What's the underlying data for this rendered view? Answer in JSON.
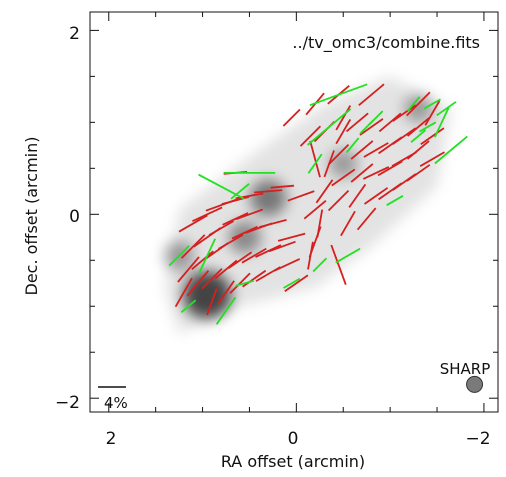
{
  "chart_data": {
    "type": "scatter",
    "title": "../tv_omc3/combine.fits",
    "xlabel": "RA offset (arcmin)",
    "ylabel": "Dec. offset (arcmin)",
    "xlim": [
      2.2,
      -2.15
    ],
    "ylim": [
      -2.15,
      2.2
    ],
    "x_ticks": [
      2,
      0,
      -2
    ],
    "y_ticks": [
      2,
      0,
      -2
    ],
    "x_tick_labels": [
      "2",
      "0",
      "−2"
    ],
    "y_tick_labels": [
      "2",
      "0",
      "−2"
    ],
    "scale_bar_label": "4%",
    "beam_label": "SHARP",
    "beam_position": [
      -1.9,
      -1.85
    ],
    "colors": {
      "series_1": "#d42020",
      "series_2": "#22e022",
      "intensity": "#000000"
    },
    "intensity_peaks": [
      {
        "x": 0.95,
        "y": -0.88,
        "value": 1.0
      },
      {
        "x": 0.3,
        "y": 0.18,
        "value": 0.6
      },
      {
        "x": 0.55,
        "y": -0.25,
        "value": 0.45
      },
      {
        "x": 1.25,
        "y": -0.45,
        "value": 0.35
      },
      {
        "x": -0.5,
        "y": 0.55,
        "value": 0.3
      },
      {
        "x": -1.3,
        "y": 1.15,
        "value": 0.3
      }
    ],
    "series": [
      {
        "segments": [
          {
            "x": 1.1,
            "y": -0.1,
            "angle": 30,
            "length": 0.35
          },
          {
            "x": 0.95,
            "y": 0.0,
            "angle": 25,
            "length": 0.35
          },
          {
            "x": 0.8,
            "y": 0.1,
            "angle": 20,
            "length": 0.35
          },
          {
            "x": 0.65,
            "y": 0.15,
            "angle": 15,
            "length": 0.3
          },
          {
            "x": 0.5,
            "y": 0.2,
            "angle": 10,
            "length": 0.3
          },
          {
            "x": 0.3,
            "y": 0.25,
            "angle": 5,
            "length": 0.3
          },
          {
            "x": 1.1,
            "y": -0.35,
            "angle": 45,
            "length": 0.35
          },
          {
            "x": 0.95,
            "y": -0.25,
            "angle": 35,
            "length": 0.35
          },
          {
            "x": 0.8,
            "y": -0.15,
            "angle": 30,
            "length": 0.3
          },
          {
            "x": 0.65,
            "y": -0.05,
            "angle": 25,
            "length": 0.3
          },
          {
            "x": 0.5,
            "y": 0.0,
            "angle": 20,
            "length": 0.3
          },
          {
            "x": 1.15,
            "y": -0.6,
            "angle": 50,
            "length": 0.35
          },
          {
            "x": 1.0,
            "y": -0.5,
            "angle": 40,
            "length": 0.3
          },
          {
            "x": 0.85,
            "y": -0.4,
            "angle": 35,
            "length": 0.3
          },
          {
            "x": 0.7,
            "y": -0.3,
            "angle": 30,
            "length": 0.3
          },
          {
            "x": 0.55,
            "y": -0.2,
            "angle": 25,
            "length": 0.3
          },
          {
            "x": 0.4,
            "y": -0.15,
            "angle": 20,
            "length": 0.3
          },
          {
            "x": 0.25,
            "y": -0.1,
            "angle": 15,
            "length": 0.3
          },
          {
            "x": 1.2,
            "y": -0.85,
            "angle": 60,
            "length": 0.35
          },
          {
            "x": 1.05,
            "y": -0.75,
            "angle": 50,
            "length": 0.35
          },
          {
            "x": 0.9,
            "y": -0.7,
            "angle": 45,
            "length": 0.3
          },
          {
            "x": 0.75,
            "y": -0.6,
            "angle": 40,
            "length": 0.3
          },
          {
            "x": 0.6,
            "y": -0.5,
            "angle": 35,
            "length": 0.3
          },
          {
            "x": 0.45,
            "y": -0.45,
            "angle": 30,
            "length": 0.3
          },
          {
            "x": 0.3,
            "y": -0.4,
            "angle": 25,
            "length": 0.3
          },
          {
            "x": 0.15,
            "y": -0.35,
            "angle": 20,
            "length": 0.3
          },
          {
            "x": 0.9,
            "y": -0.95,
            "angle": 70,
            "length": 0.3
          },
          {
            "x": 0.75,
            "y": -0.85,
            "angle": 55,
            "length": 0.3
          },
          {
            "x": 0.6,
            "y": -0.75,
            "angle": 45,
            "length": 0.3
          },
          {
            "x": 0.45,
            "y": -0.7,
            "angle": 35,
            "length": 0.3
          },
          {
            "x": 0.3,
            "y": -0.65,
            "angle": 30,
            "length": 0.3
          },
          {
            "x": 0.1,
            "y": -0.55,
            "angle": 25,
            "length": 0.3
          },
          {
            "x": 0.05,
            "y": -0.25,
            "angle": 15,
            "length": 0.3
          },
          {
            "x": 0.0,
            "y": -0.75,
            "angle": 35,
            "length": 0.3
          },
          {
            "x": 0.15,
            "y": 0.3,
            "angle": 5,
            "length": 0.25
          },
          {
            "x": -0.05,
            "y": 0.2,
            "angle": 20,
            "length": 0.3
          },
          {
            "x": -0.2,
            "y": 0.05,
            "angle": 40,
            "length": 0.3
          },
          {
            "x": -0.3,
            "y": 0.25,
            "angle": 55,
            "length": 0.3
          },
          {
            "x": -0.35,
            "y": 0.55,
            "angle": 70,
            "length": 0.3
          },
          {
            "x": -0.2,
            "y": 0.6,
            "angle": 105,
            "length": 0.4
          },
          {
            "x": -0.5,
            "y": 0.9,
            "angle": 60,
            "length": 0.3
          },
          {
            "x": -0.45,
            "y": 0.65,
            "angle": 45,
            "length": 0.3
          },
          {
            "x": -0.5,
            "y": 0.4,
            "angle": 35,
            "length": 0.3
          },
          {
            "x": -0.45,
            "y": 0.15,
            "angle": 45,
            "length": 0.3
          },
          {
            "x": -0.55,
            "y": -0.1,
            "angle": 60,
            "length": 0.3
          },
          {
            "x": -0.25,
            "y": -0.1,
            "angle": 80,
            "length": 0.3
          },
          {
            "x": -0.2,
            "y": -0.3,
            "angle": 70,
            "length": 0.35
          },
          {
            "x": -0.15,
            "y": -0.45,
            "angle": 80,
            "length": 0.3
          },
          {
            "x": -0.45,
            "y": -0.55,
            "angle": 110,
            "length": 0.45
          },
          {
            "x": -0.65,
            "y": 0.2,
            "angle": 55,
            "length": 0.3
          },
          {
            "x": -0.7,
            "y": 0.45,
            "angle": 40,
            "length": 0.3
          },
          {
            "x": -0.7,
            "y": 0.7,
            "angle": 40,
            "length": 0.3
          },
          {
            "x": -0.65,
            "y": 1.0,
            "angle": 40,
            "length": 0.3
          },
          {
            "x": -0.8,
            "y": 0.95,
            "angle": 35,
            "length": 0.3
          },
          {
            "x": -0.85,
            "y": 0.7,
            "angle": 30,
            "length": 0.3
          },
          {
            "x": -0.85,
            "y": 0.45,
            "angle": 25,
            "length": 0.3
          },
          {
            "x": -0.85,
            "y": 0.2,
            "angle": 35,
            "length": 0.3
          },
          {
            "x": -0.75,
            "y": -0.05,
            "angle": 50,
            "length": 0.3
          },
          {
            "x": -1.0,
            "y": 0.25,
            "angle": 35,
            "length": 0.3
          },
          {
            "x": -1.0,
            "y": 0.5,
            "angle": 30,
            "length": 0.3
          },
          {
            "x": -1.0,
            "y": 0.75,
            "angle": 35,
            "length": 0.3
          },
          {
            "x": -1.0,
            "y": 1.0,
            "angle": 40,
            "length": 0.3
          },
          {
            "x": -1.15,
            "y": 1.1,
            "angle": 35,
            "length": 0.3
          },
          {
            "x": -1.15,
            "y": 0.85,
            "angle": 35,
            "length": 0.3
          },
          {
            "x": -1.15,
            "y": 0.6,
            "angle": 30,
            "length": 0.3
          },
          {
            "x": -1.15,
            "y": 0.35,
            "angle": 35,
            "length": 0.3
          },
          {
            "x": -1.3,
            "y": 0.7,
            "angle": 40,
            "length": 0.3
          },
          {
            "x": -1.3,
            "y": 0.95,
            "angle": 40,
            "length": 0.3
          },
          {
            "x": -1.3,
            "y": 1.2,
            "angle": 45,
            "length": 0.35
          },
          {
            "x": -1.45,
            "y": 1.1,
            "angle": 60,
            "length": 0.3
          },
          {
            "x": -1.45,
            "y": 0.85,
            "angle": 35,
            "length": 0.3
          },
          {
            "x": -1.45,
            "y": 0.6,
            "angle": 30,
            "length": 0.3
          },
          {
            "x": -1.3,
            "y": 0.45,
            "angle": 35,
            "length": 0.3
          },
          {
            "x": -0.5,
            "y": 1.05,
            "angle": 60,
            "length": 0.3
          },
          {
            "x": -0.3,
            "y": 0.9,
            "angle": 45,
            "length": 0.3
          },
          {
            "x": -0.15,
            "y": 0.85,
            "angle": 45,
            "length": 0.3
          },
          {
            "x": -0.2,
            "y": 1.2,
            "angle": 50,
            "length": 0.3
          },
          {
            "x": -0.45,
            "y": 1.3,
            "angle": 40,
            "length": 0.3
          },
          {
            "x": -0.8,
            "y": 1.3,
            "angle": 40,
            "length": 0.35
          },
          {
            "x": 0.05,
            "y": 1.05,
            "angle": 45,
            "length": 0.25
          },
          {
            "x": 0.65,
            "y": 0.45,
            "angle": 5,
            "length": 0.25
          }
        ]
      },
      {
        "segments": [
          {
            "x": 1.25,
            "y": -0.45,
            "angle": 45,
            "length": 0.3
          },
          {
            "x": 0.5,
            "y": 0.45,
            "angle": 0,
            "length": 0.55
          },
          {
            "x": 0.8,
            "y": 0.3,
            "angle": -28,
            "length": 0.55
          },
          {
            "x": 0.95,
            "y": -0.45,
            "angle": 65,
            "length": 0.4
          },
          {
            "x": 1.15,
            "y": -1.0,
            "angle": 40,
            "length": 0.2
          },
          {
            "x": 0.75,
            "y": -1.05,
            "angle": 55,
            "length": 0.35
          },
          {
            "x": 0.6,
            "y": 0.25,
            "angle": 40,
            "length": 0.25
          },
          {
            "x": 0.55,
            "y": -0.75,
            "angle": 15,
            "length": 0.2
          },
          {
            "x": 0.05,
            "y": -0.75,
            "angle": 30,
            "length": 0.2
          },
          {
            "x": -0.25,
            "y": -0.55,
            "angle": 45,
            "length": 0.2
          },
          {
            "x": -0.55,
            "y": -0.45,
            "angle": 30,
            "length": 0.3
          },
          {
            "x": -0.2,
            "y": 0.55,
            "angle": 55,
            "length": 0.25
          },
          {
            "x": -0.6,
            "y": 0.75,
            "angle": 50,
            "length": 0.2
          },
          {
            "x": -0.85,
            "y": 1.05,
            "angle": 45,
            "length": 0.2
          },
          {
            "x": -0.75,
            "y": 0.95,
            "angle": 45,
            "length": 0.2
          },
          {
            "x": -1.05,
            "y": 0.15,
            "angle": 30,
            "length": 0.2
          },
          {
            "x": -1.3,
            "y": 0.85,
            "angle": 40,
            "length": 0.2
          },
          {
            "x": -1.25,
            "y": 1.2,
            "angle": 50,
            "length": 0.2
          },
          {
            "x": -1.65,
            "y": 0.7,
            "angle": 40,
            "length": 0.45
          },
          {
            "x": -1.55,
            "y": 1.0,
            "angle": 65,
            "length": 0.35
          },
          {
            "x": -1.4,
            "y": 0.95,
            "angle": 30,
            "length": 0.2
          },
          {
            "x": -0.35,
            "y": 0.95,
            "angle": 40,
            "length": 0.6
          },
          {
            "x": -0.45,
            "y": 1.3,
            "angle": 20,
            "length": 0.65
          },
          {
            "x": -1.45,
            "y": 1.2,
            "angle": 30,
            "length": 0.2
          },
          {
            "x": -1.6,
            "y": 1.15,
            "angle": 35,
            "length": 0.25
          }
        ]
      }
    ]
  }
}
